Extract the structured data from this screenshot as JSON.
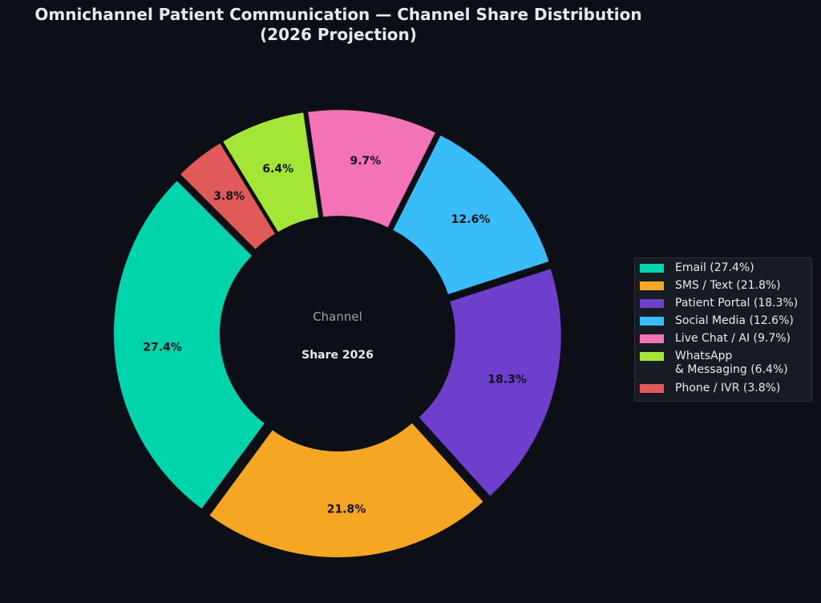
{
  "chart_data": {
    "type": "pie",
    "title_line1": "Omnichannel Patient Communication — Channel Share Distribution",
    "title_line2": "(2026 Projection)",
    "center_label_top": "Channel",
    "center_label_bottom": "Share 2026",
    "legend_position": "right",
    "slices": [
      {
        "name": "Email",
        "value": 27.4,
        "label": "27.4%",
        "legend": "Email  (27.4%)",
        "color": "#00d4aa"
      },
      {
        "name": "SMS / Text",
        "value": 21.8,
        "label": "21.8%",
        "legend": "SMS / Text  (21.8%)",
        "color": "#f5a623"
      },
      {
        "name": "Patient Portal",
        "value": 18.3,
        "label": "18.3%",
        "legend": "Patient Portal  (18.3%)",
        "color": "#6e3fcc"
      },
      {
        "name": "Social Media",
        "value": 12.6,
        "label": "12.6%",
        "legend": "Social Media  (12.6%)",
        "color": "#38bdf8"
      },
      {
        "name": "Live Chat / AI",
        "value": 9.7,
        "label": "9.7%",
        "legend": "Live Chat / AI  (9.7%)",
        "color": "#f472b6"
      },
      {
        "name": "WhatsApp & Messaging",
        "value": 6.4,
        "label": "6.4%",
        "legend": "WhatsApp\n& Messaging  (6.4%)",
        "color": "#a3e635"
      },
      {
        "name": "Phone / IVR",
        "value": 3.8,
        "label": "3.8%",
        "legend": "Phone / IVR  (3.8%)",
        "color": "#e05a5a"
      }
    ]
  }
}
